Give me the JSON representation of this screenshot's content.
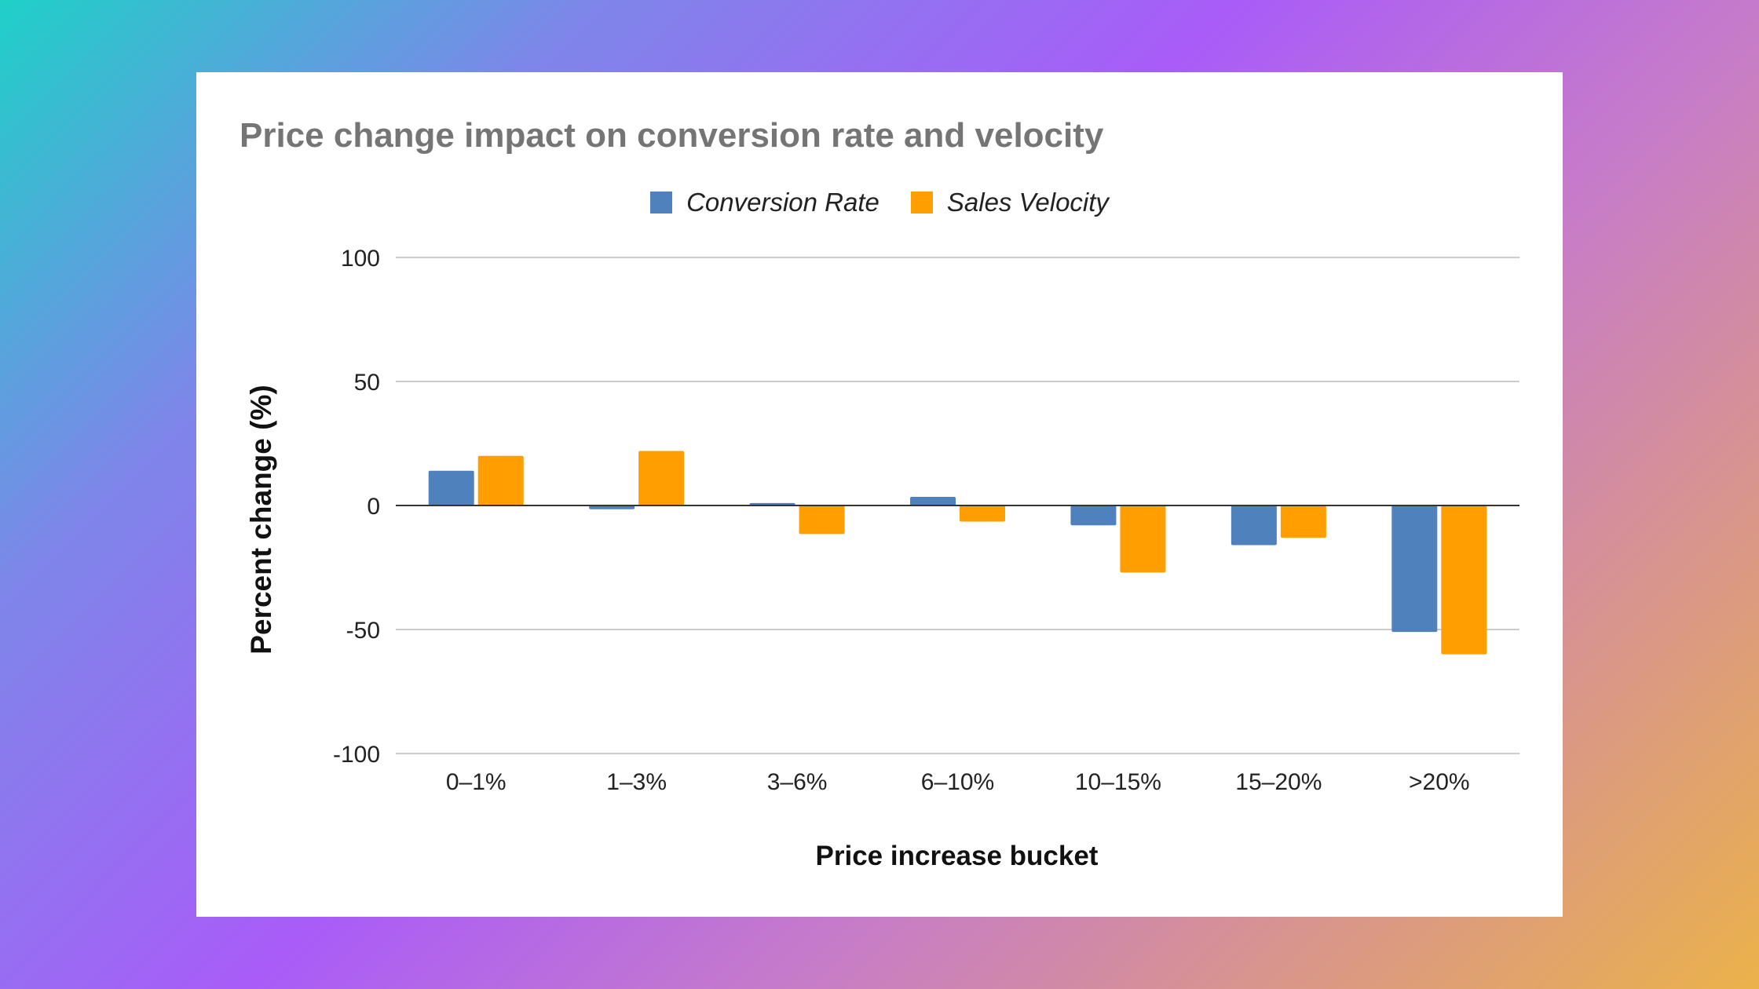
{
  "chart_data": {
    "type": "bar",
    "title": "Price change impact on conversion rate and velocity",
    "xlabel": "Price increase bucket",
    "ylabel": "Percent change (%)",
    "categories": [
      "0–1%",
      "1–3%",
      "3–6%",
      "6–10%",
      "10–15%",
      "15–20%",
      ">20%"
    ],
    "series": [
      {
        "name": "Conversion Rate",
        "color": "#4f81bd",
        "values": [
          14,
          -1.5,
          1,
          3.5,
          -8,
          -16,
          -51
        ]
      },
      {
        "name": "Sales Velocity",
        "color": "#ff9e01",
        "values": [
          20,
          22,
          -11.5,
          -6.5,
          -27,
          -13,
          -60
        ]
      }
    ],
    "ylim": [
      -100,
      100
    ],
    "yticks": [
      100,
      50,
      0,
      -50,
      -100
    ],
    "grid": true,
    "legend_position": "top"
  }
}
